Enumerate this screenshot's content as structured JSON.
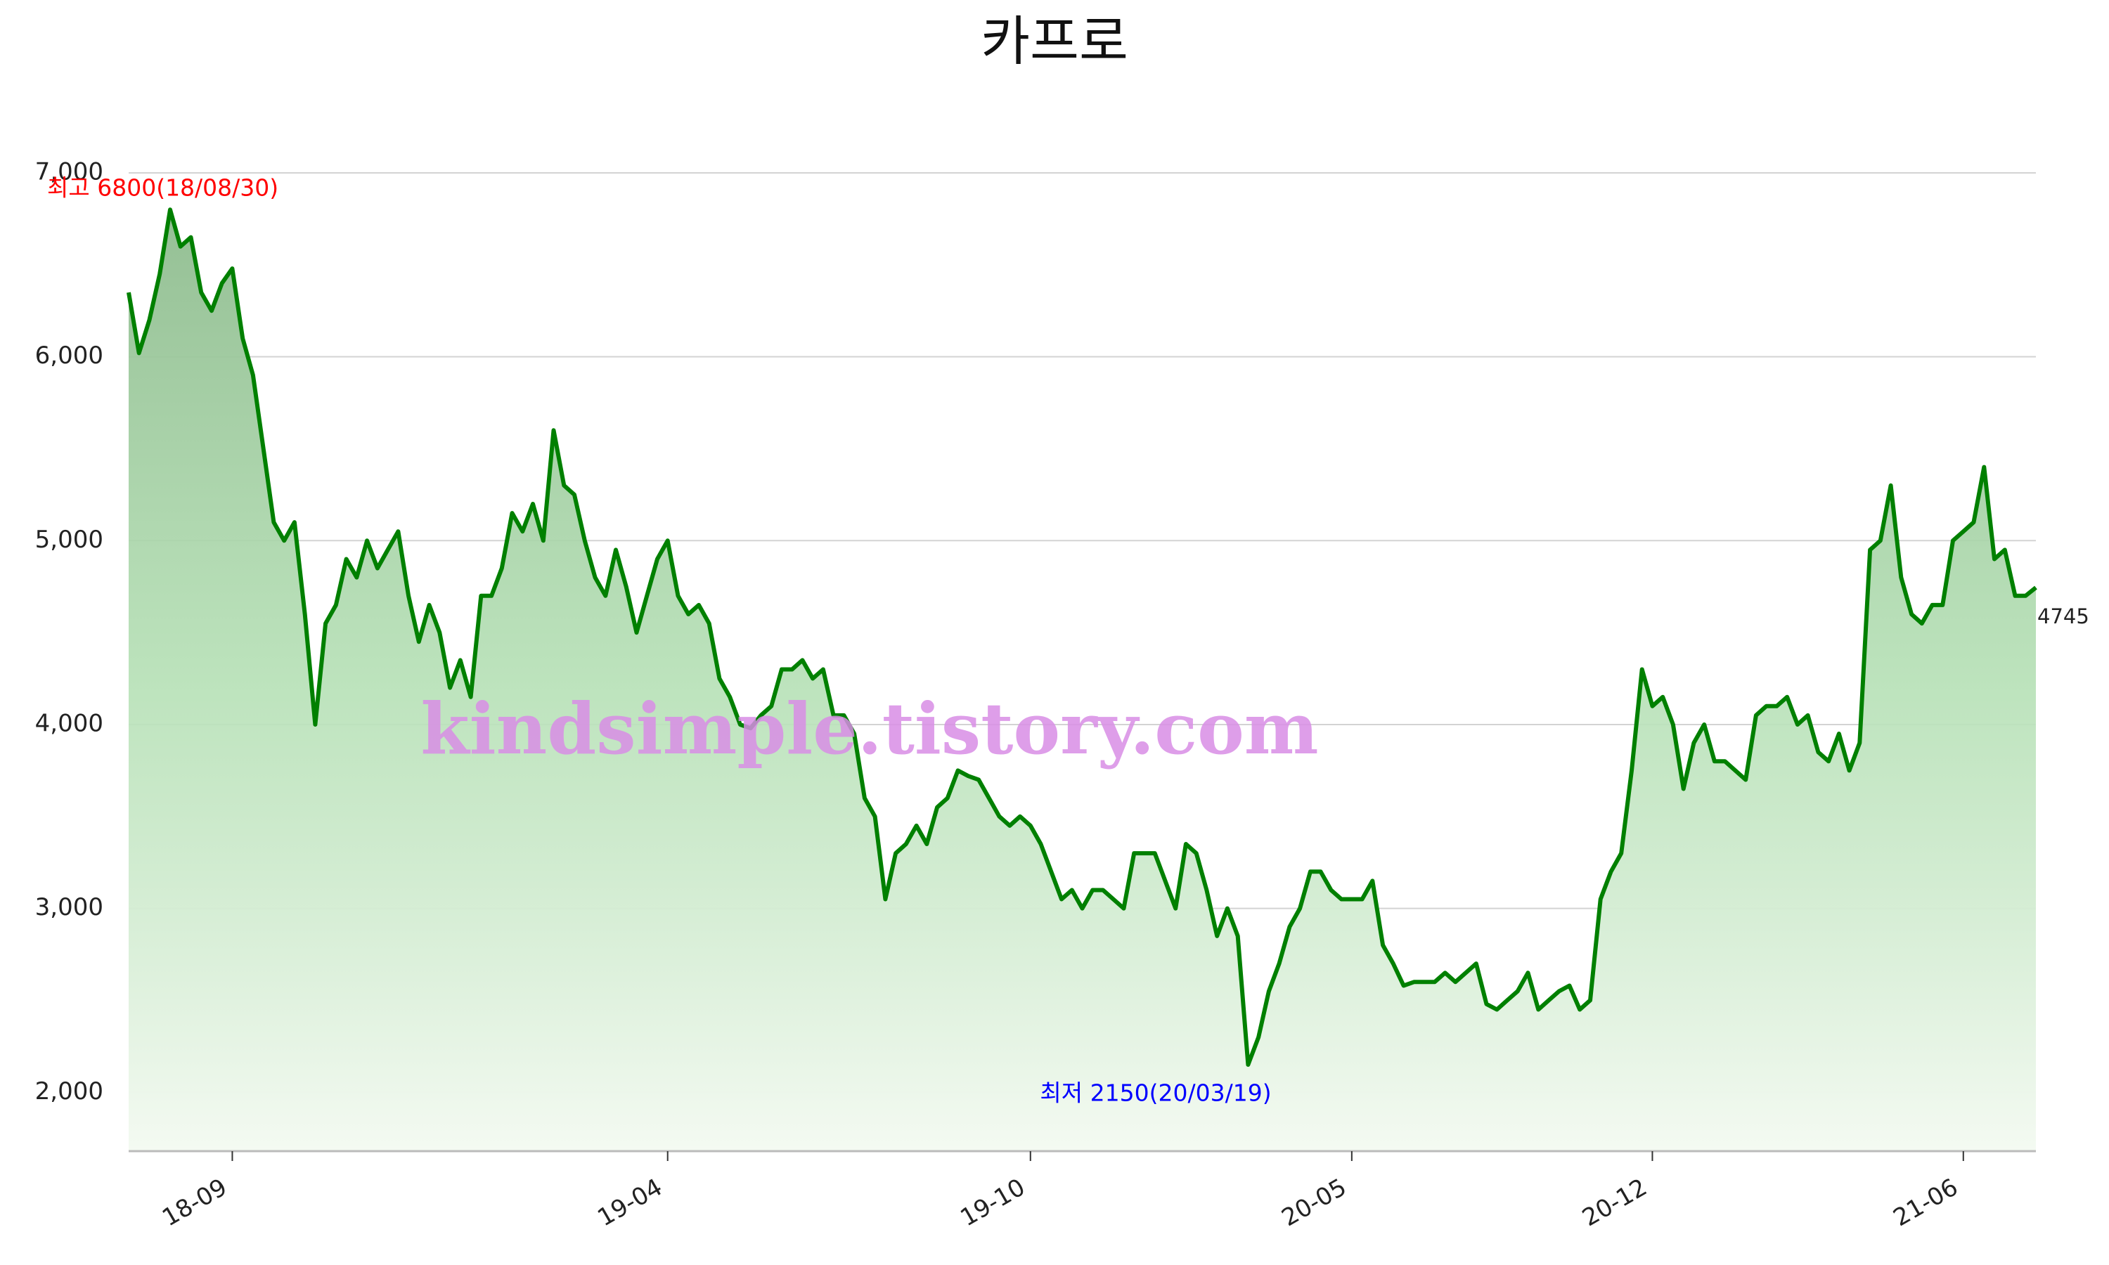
{
  "chart_data": {
    "type": "line",
    "title": "카프로",
    "watermark": "kindsimple.tistory.com",
    "annotations": [
      {
        "text": "최고 6800(18/08/30)",
        "color": "#ff0000"
      },
      {
        "text": "최저 2150(20/03/19)",
        "color": "#0000ff"
      }
    ],
    "line_color": "#008000",
    "fill_color": "#8fbc8f",
    "grid": true,
    "ylim": [
      1680,
      7000
    ],
    "yticks": [
      {
        "value": 2000,
        "label": "2,000"
      },
      {
        "value": 3000,
        "label": "3,000"
      },
      {
        "value": 4000,
        "label": "4,000"
      },
      {
        "value": 5000,
        "label": "5,000"
      },
      {
        "value": 6000,
        "label": "6,000"
      },
      {
        "value": 7000,
        "label": "7,000"
      }
    ],
    "categories": [
      null,
      null,
      null,
      null,
      null,
      null,
      null,
      null,
      null,
      null,
      "18-09",
      null,
      null,
      null,
      null,
      null,
      null,
      null,
      null,
      null,
      null,
      null,
      null,
      null,
      null,
      null,
      null,
      null,
      null,
      null,
      null,
      null,
      null,
      null,
      null,
      null,
      null,
      null,
      null,
      null,
      null,
      null,
      null,
      null,
      null,
      null,
      null,
      null,
      null,
      null,
      null,
      null,
      "19-04",
      null,
      null,
      null,
      null,
      null,
      null,
      null,
      null,
      null,
      null,
      null,
      null,
      null,
      null,
      null,
      null,
      null,
      null,
      null,
      null,
      null,
      null,
      null,
      null,
      null,
      null,
      null,
      null,
      null,
      null,
      null,
      null,
      null,
      null,
      "19-10",
      null,
      null,
      null,
      null,
      null,
      null,
      null,
      null,
      null,
      null,
      null,
      null,
      null,
      null,
      null,
      null,
      null,
      null,
      null,
      null,
      null,
      null,
      null,
      null,
      null,
      null,
      null,
      null,
      null,
      null,
      "20-05",
      null,
      null,
      null,
      null,
      null,
      null,
      null,
      null,
      null,
      null,
      null,
      null,
      null,
      null,
      null,
      null,
      null,
      null,
      null,
      null,
      null,
      null,
      null,
      null,
      null,
      null,
      null,
      null,
      "20-12",
      null,
      null,
      null,
      null,
      null,
      null,
      null,
      null,
      null,
      null,
      null,
      null,
      null,
      null,
      null,
      null,
      null,
      null,
      null,
      null,
      null,
      null,
      null,
      null,
      null,
      null,
      null,
      null,
      null,
      "21-06",
      null,
      null,
      null,
      null,
      null,
      null,
      null
    ],
    "values": [
      6350,
      6020,
      6200,
      6450,
      6800,
      6600,
      6650,
      6350,
      6250,
      6400,
      6480,
      6100,
      5900,
      5500,
      5100,
      5000,
      5100,
      4600,
      4000,
      4550,
      4650,
      4900,
      4800,
      5000,
      4850,
      4950,
      5050,
      4700,
      4450,
      4650,
      4500,
      4200,
      4350,
      4150,
      4700,
      4700,
      4850,
      5150,
      5050,
      5200,
      5000,
      5600,
      5300,
      5250,
      5000,
      4800,
      4700,
      4950,
      4750,
      4500,
      4700,
      4900,
      5000,
      4700,
      4600,
      4650,
      4550,
      4250,
      4150,
      4000,
      3980,
      4050,
      4100,
      4300,
      4300,
      4350,
      4250,
      4300,
      4050,
      4050,
      3950,
      3600,
      3500,
      3050,
      3300,
      3350,
      3450,
      3350,
      3550,
      3600,
      3750,
      3720,
      3700,
      3600,
      3500,
      3450,
      3500,
      3450,
      3350,
      3200,
      3050,
      3100,
      3000,
      3100,
      3100,
      3050,
      3000,
      3300,
      3300,
      3300,
      3150,
      3000,
      3350,
      3300,
      3100,
      2850,
      3000,
      2850,
      2150,
      2300,
      2550,
      2700,
      2900,
      3000,
      3200,
      3200,
      3100,
      3050,
      3050,
      3050,
      3150,
      2800,
      2700,
      2580,
      2600,
      2600,
      2600,
      2650,
      2600,
      2650,
      2700,
      2480,
      2450,
      2500,
      2550,
      2650,
      2450,
      2500,
      2550,
      2580,
      2450,
      2500,
      3050,
      3200,
      3300,
      3750,
      4300,
      4100,
      4150,
      4000,
      3650,
      3900,
      4000,
      3800,
      3800,
      3750,
      3700,
      4050,
      4100,
      4100,
      4150,
      4000,
      4050,
      3850,
      3800,
      3950,
      3750,
      3900,
      4950,
      5000,
      5300,
      4800,
      4600,
      4550,
      4650,
      4650,
      5000,
      5050,
      5100,
      5400,
      4900,
      4950,
      4700,
      4700,
      4745
    ]
  }
}
